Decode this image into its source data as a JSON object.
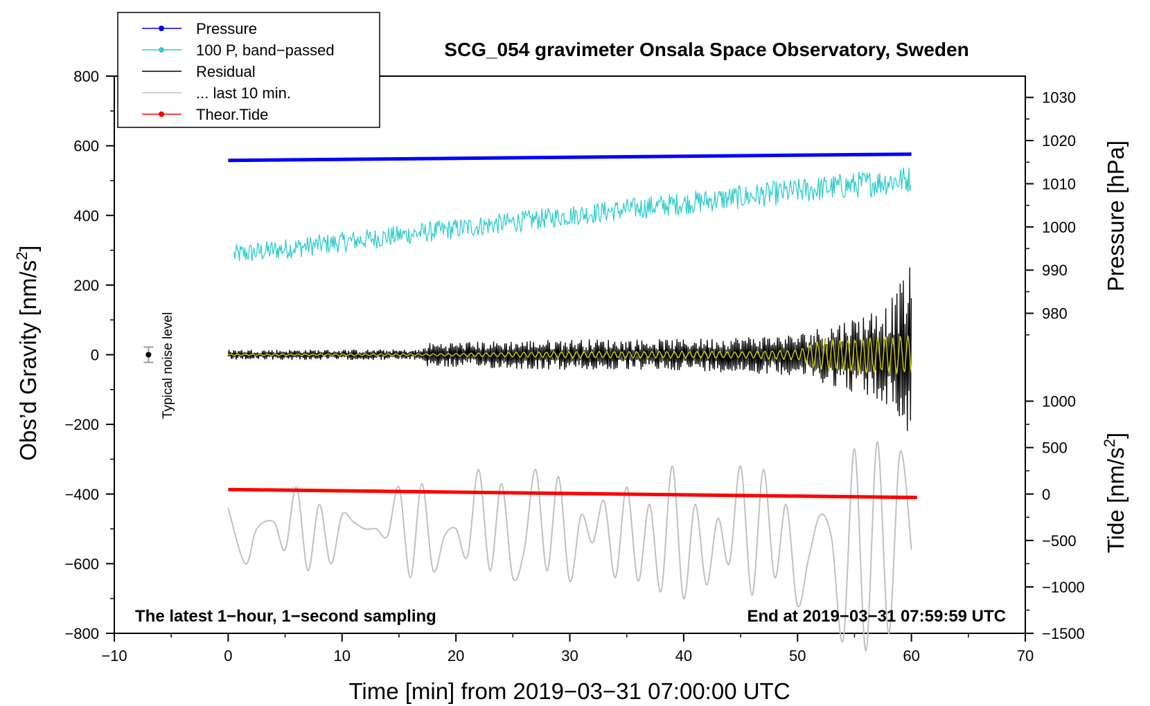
{
  "chart_data": {
    "type": "line",
    "title": "SCG_054 gravimeter Onsala Space Observatory, Sweden",
    "xlabel": "Time [min] from 2019−03−31 07:00:00 UTC",
    "ylabel_left": {
      "text": "Obs’d Gravity [nm/s",
      "sup": "2",
      "close": "]"
    },
    "ylabel_pressure": "Pressure [hPa]",
    "ylabel_tide": {
      "text": "Tide [nm/s",
      "sup": "2",
      "close": "]"
    },
    "xlim": [
      -10,
      70
    ],
    "ylim": [
      -800,
      800
    ],
    "x_ticks": [
      "−10",
      "0",
      "10",
      "20",
      "30",
      "40",
      "50",
      "60",
      "70"
    ],
    "x_tick_values": [
      -10,
      0,
      10,
      20,
      30,
      40,
      50,
      60,
      70
    ],
    "y_ticks": [
      "−800",
      "−600",
      "−400",
      "−200",
      "0",
      "200",
      "400",
      "600",
      "800"
    ],
    "y_tick_values": [
      -800,
      -600,
      -400,
      -200,
      0,
      200,
      400,
      600,
      800
    ],
    "pressure_axis": {
      "ticks": [
        "980",
        "990",
        "1000",
        "1010",
        "1020",
        "1030"
      ],
      "values": [
        980,
        990,
        1000,
        1010,
        1020,
        1030
      ],
      "map_left_at_1000": 367,
      "left_per_hpa": 12.4
    },
    "tide_axis": {
      "ticks": [
        "−1500",
        "−1000",
        "−500",
        "0",
        "500",
        "1000"
      ],
      "values": [
        -1500,
        -1000,
        -500,
        0,
        500,
        1000
      ],
      "map_left_at_0": -400,
      "left_per_unit": 0.2667
    },
    "legend": [
      {
        "label": "Pressure",
        "color": "#0000ff",
        "marker": true
      },
      {
        "label": "100 P, band−passed",
        "color": "#33cccc",
        "marker": true
      },
      {
        "label": "Residual",
        "color": "#000000",
        "marker": false
      },
      {
        "label": "... last 10 min.",
        "color": "#c0c0c0",
        "marker": false
      },
      {
        "label": "Theor.Tide",
        "color": "#ff0000",
        "marker": true
      }
    ],
    "annotation_left": "The latest 1−hour, 1−second sampling",
    "annotation_right": "End at 2019−03−31 07:59:59 UTC",
    "noise_label": "Typical noise level",
    "noise_marker": {
      "x": -7,
      "y": 0,
      "err": 22
    },
    "series": [
      {
        "name": "Pressure",
        "color": "#0000ff",
        "x": [
          0,
          60
        ],
        "y": [
          558,
          576
        ]
      },
      {
        "name": "100 P, band-passed",
        "color": "#33cccc",
        "trend_x": [
          0,
          30,
          60
        ],
        "trend_y": [
          285,
          400,
          505
        ],
        "noise_amp": [
          30,
          30,
          40
        ]
      },
      {
        "name": "Residual",
        "color": "#000000",
        "env_x": [
          0,
          17,
          17.5,
          30,
          40,
          50,
          55,
          58,
          60
        ],
        "env_amp": [
          15,
          15,
          35,
          45,
          45,
          60,
          110,
          150,
          260
        ]
      },
      {
        "name": "Residual filtered",
        "color": "#cccc00",
        "env_x": [
          0,
          17,
          30,
          45,
          50,
          52,
          56,
          60
        ],
        "env_amp": [
          2,
          3,
          10,
          10,
          15,
          45,
          55,
          60
        ]
      },
      {
        "name": "... last 10 min.",
        "color": "#c0c0c0",
        "x": [
          0,
          1.5,
          2.5,
          4,
          5,
          6,
          7,
          8,
          9,
          10,
          11,
          12,
          13,
          14,
          15,
          16,
          17,
          18,
          19,
          20,
          21,
          22,
          23,
          24,
          25,
          26,
          27,
          28,
          29,
          30,
          31,
          32,
          33,
          34,
          35,
          36,
          37,
          38,
          39,
          40,
          41,
          42,
          43,
          44,
          45,
          46,
          47,
          48,
          49,
          50,
          51,
          52,
          53,
          54,
          55,
          56,
          57,
          58,
          59,
          60
        ],
        "y": [
          -440,
          -600,
          -500,
          -480,
          -560,
          -380,
          -620,
          -430,
          -600,
          -460,
          -480,
          -500,
          -500,
          -520,
          -380,
          -640,
          -370,
          -620,
          -520,
          -500,
          -580,
          -330,
          -620,
          -370,
          -640,
          -560,
          -330,
          -620,
          -350,
          -650,
          -460,
          -540,
          -420,
          -640,
          -380,
          -650,
          -430,
          -680,
          -320,
          -700,
          -430,
          -660,
          -470,
          -600,
          -320,
          -690,
          -330,
          -640,
          -430,
          -720,
          -580,
          -460,
          -530,
          -820,
          -270,
          -850,
          -250,
          -800,
          -280,
          -560
        ]
      },
      {
        "name": "Theor.Tide",
        "color": "#ff0000",
        "x": [
          0,
          60.5
        ],
        "y": [
          -387,
          -410
        ]
      }
    ]
  }
}
